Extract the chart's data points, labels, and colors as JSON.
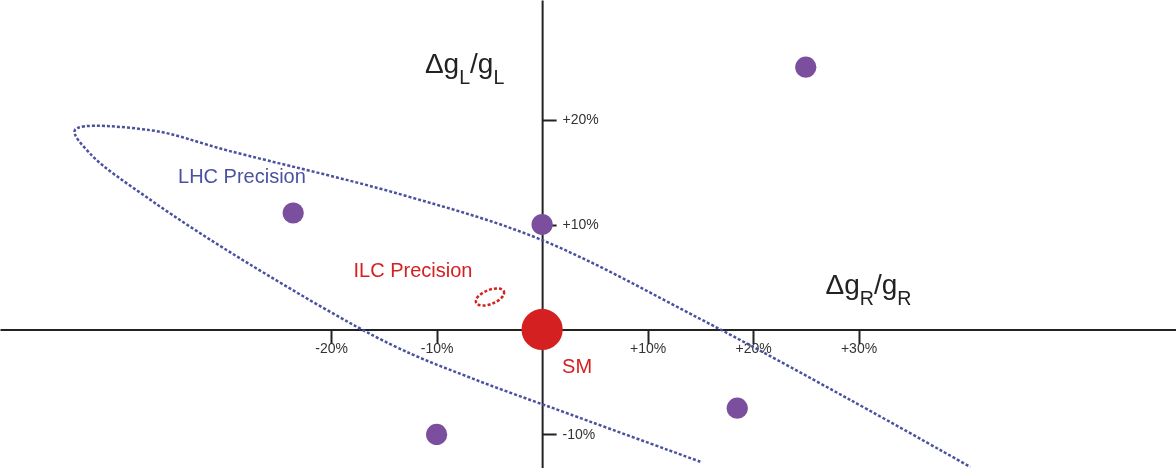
{
  "chart_data": {
    "type": "scatter",
    "xlabel": "Δg$_{R}$/g$_{R}$",
    "ylabel": "Δg$_{L}$/g$_{L}$",
    "xlim": [
      -51.4,
      60.1
    ],
    "ylim": [
      -13.2,
      31.4
    ],
    "xticks": [
      {
        "value": -20,
        "label": "-20%"
      },
      {
        "value": -10,
        "label": "-10%"
      },
      {
        "value": 10,
        "label": "+10%"
      },
      {
        "value": 20,
        "label": "+20%"
      },
      {
        "value": 30,
        "label": "+30%"
      }
    ],
    "yticks": [
      {
        "value": 20,
        "label": "+20%"
      },
      {
        "value": 10,
        "label": "+10%"
      },
      {
        "value": -10,
        "label": "-10%"
      }
    ],
    "grid": false,
    "series": [
      {
        "type": "line",
        "line_style": "dotted",
        "color": "#4a52a0",
        "x": [
          15.0,
          2.7,
          -6.8,
          -14.4,
          -27.7,
          -37.2,
          -42.8,
          -44.3,
          -37.2,
          -29.6,
          -13.5,
          -0.2,
          15.0,
          29.2,
          40.6
        ],
        "values": [
          -12.6,
          -8.1,
          -4.6,
          -1.4,
          6.2,
          12.4,
          16.7,
          19.0,
          19.0,
          17.0,
          12.9,
          8.6,
          1.0,
          -6.7,
          -13.1
        ]
      },
      {
        "color": "#7b4f9e",
        "marker": "circle",
        "x": [
          25.0,
          -23.6,
          0,
          18.5,
          -10
        ],
        "values": [
          25.0,
          11.1,
          10,
          -7.5,
          -10
        ]
      },
      {
        "color": "#d42020",
        "marker": "circle",
        "x": [
          0
        ],
        "values": [
          0
        ]
      }
    ],
    "annotations": [
      {
        "text": "LHC Precision",
        "x": -29.6,
        "y": 17.0
      },
      "ILC Precision",
      {
        "text": "SM",
        "x": 0,
        "y": 0
      }
    ]
  }
}
